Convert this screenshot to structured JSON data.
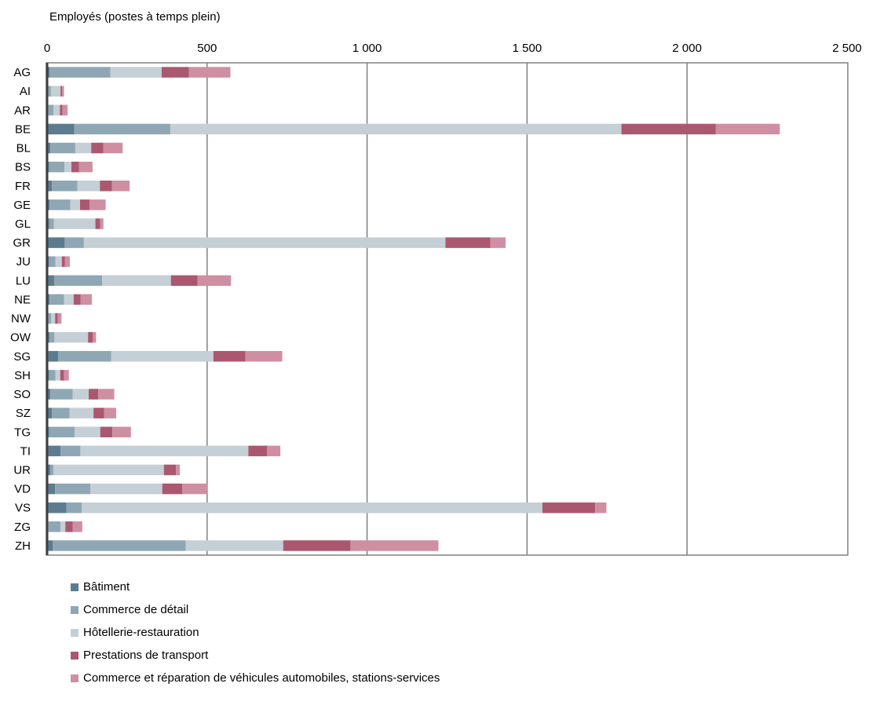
{
  "chart_data": {
    "type": "bar",
    "orientation": "horizontal",
    "stacked": true,
    "title": "Employés (postes à temps plein)",
    "xlim": [
      0,
      2500
    ],
    "x_ticks": [
      {
        "value": 0,
        "label": "0"
      },
      {
        "value": 500,
        "label": "500"
      },
      {
        "value": 1000,
        "label": "1 000"
      },
      {
        "value": 1500,
        "label": "1 500"
      },
      {
        "value": 2000,
        "label": "2 000"
      },
      {
        "value": 2500,
        "label": "2 500"
      }
    ],
    "x_axis_position": "top",
    "grid": "vertical",
    "legend_position": "bottom-left",
    "categories": [
      "AG",
      "AI",
      "AR",
      "BE",
      "BL",
      "BS",
      "FR",
      "GE",
      "GL",
      "GR",
      "JU",
      "LU",
      "NE",
      "NW",
      "OW",
      "SG",
      "SH",
      "SO",
      "SZ",
      "TG",
      "TI",
      "UR",
      "VD",
      "VS",
      "ZG",
      "ZH"
    ],
    "series": [
      {
        "name": "Bâtiment",
        "color": "#5b7c90",
        "values": [
          8,
          4,
          4,
          85,
          10,
          6,
          15,
          8,
          6,
          55,
          6,
          22,
          8,
          3,
          8,
          35,
          6,
          10,
          15,
          6,
          42,
          10,
          25,
          60,
          4,
          18
        ]
      },
      {
        "name": "Commerce de détail",
        "color": "#8fa7b5",
        "values": [
          190,
          8,
          16,
          300,
          78,
          48,
          80,
          65,
          15,
          60,
          20,
          150,
          45,
          10,
          15,
          165,
          20,
          70,
          55,
          80,
          62,
          10,
          110,
          48,
          38,
          415
        ]
      },
      {
        "name": "Hôtellerie-restauration",
        "color": "#c5cfd6",
        "values": [
          160,
          30,
          20,
          1410,
          50,
          22,
          70,
          30,
          130,
          1130,
          20,
          215,
          30,
          12,
          105,
          320,
          15,
          50,
          75,
          80,
          525,
          345,
          225,
          1440,
          15,
          305
        ]
      },
      {
        "name": "Prestations de transport",
        "color": "#aa5870",
        "values": [
          85,
          5,
          8,
          295,
          38,
          24,
          38,
          30,
          15,
          140,
          10,
          83,
          22,
          8,
          15,
          100,
          12,
          30,
          33,
          38,
          58,
          38,
          62,
          165,
          23,
          210
        ]
      },
      {
        "name": "Commerce et réparation de véhicules automobiles, stations-services",
        "color": "#cf8fa3",
        "values": [
          130,
          6,
          16,
          200,
          60,
          42,
          55,
          50,
          10,
          48,
          15,
          105,
          35,
          12,
          10,
          115,
          15,
          50,
          38,
          58,
          42,
          12,
          78,
          35,
          30,
          275
        ]
      }
    ]
  }
}
